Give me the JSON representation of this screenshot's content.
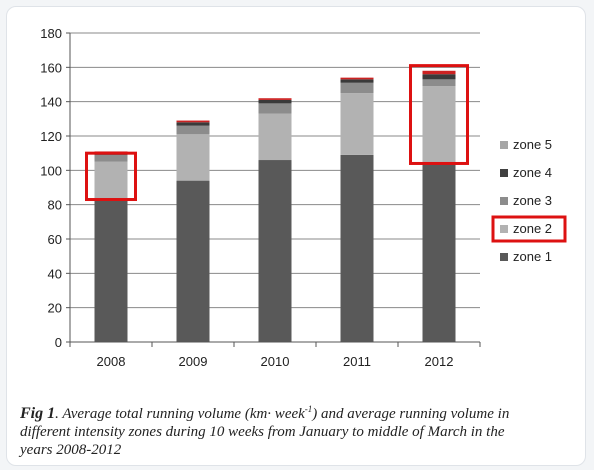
{
  "caption": {
    "fig_label": "Fig 1",
    "text_before_unit": ".  Average total running volume (km· week",
    "unit_superscript": "-1",
    "text_after_unit": ") and average running volume in different intensity zones during 10 weeks from January to middle of March in the years 2008-2012"
  },
  "chart_data": {
    "type": "bar",
    "stacked": true,
    "categories": [
      "2008",
      "2009",
      "2010",
      "2011",
      "2012"
    ],
    "series": [
      {
        "name": "zone 1",
        "color": "#595959",
        "values": [
          83,
          94,
          106,
          109,
          104
        ]
      },
      {
        "name": "zone 2",
        "color": "#b2b2b2",
        "values": [
          22,
          27,
          27,
          36,
          45
        ]
      },
      {
        "name": "zone 3",
        "color": "#8c8c8c",
        "values": [
          4,
          5,
          6,
          6,
          4
        ]
      },
      {
        "name": "zone 4",
        "color": "#3a3a3a",
        "values": [
          1,
          2,
          2,
          2,
          3
        ]
      },
      {
        "name": "zone 5",
        "color": "#cc2222",
        "values": [
          1,
          1,
          1,
          1,
          2
        ]
      }
    ],
    "y_ticks": [
      "0",
      "20",
      "40",
      "60",
      "80",
      "100",
      "120",
      "140",
      "160",
      "180"
    ],
    "ylim": [
      0,
      180
    ],
    "grid": true,
    "legend": {
      "placement": "right",
      "entries": [
        {
          "label": "zone 5",
          "color": "#a6a6a6"
        },
        {
          "label": "zone 4",
          "color": "#404040"
        },
        {
          "label": "zone 3",
          "color": "#8c8c8c"
        },
        {
          "label": "zone 2",
          "color": "#b2b2b2",
          "highlighted": true
        },
        {
          "label": "zone 1",
          "color": "#595959"
        }
      ]
    },
    "highlight_boxes": [
      {
        "category": "2008",
        "from": 83,
        "to": 110
      },
      {
        "category": "2012",
        "from": 104,
        "to": 161
      }
    ],
    "highlight_color": "#dd1111"
  }
}
